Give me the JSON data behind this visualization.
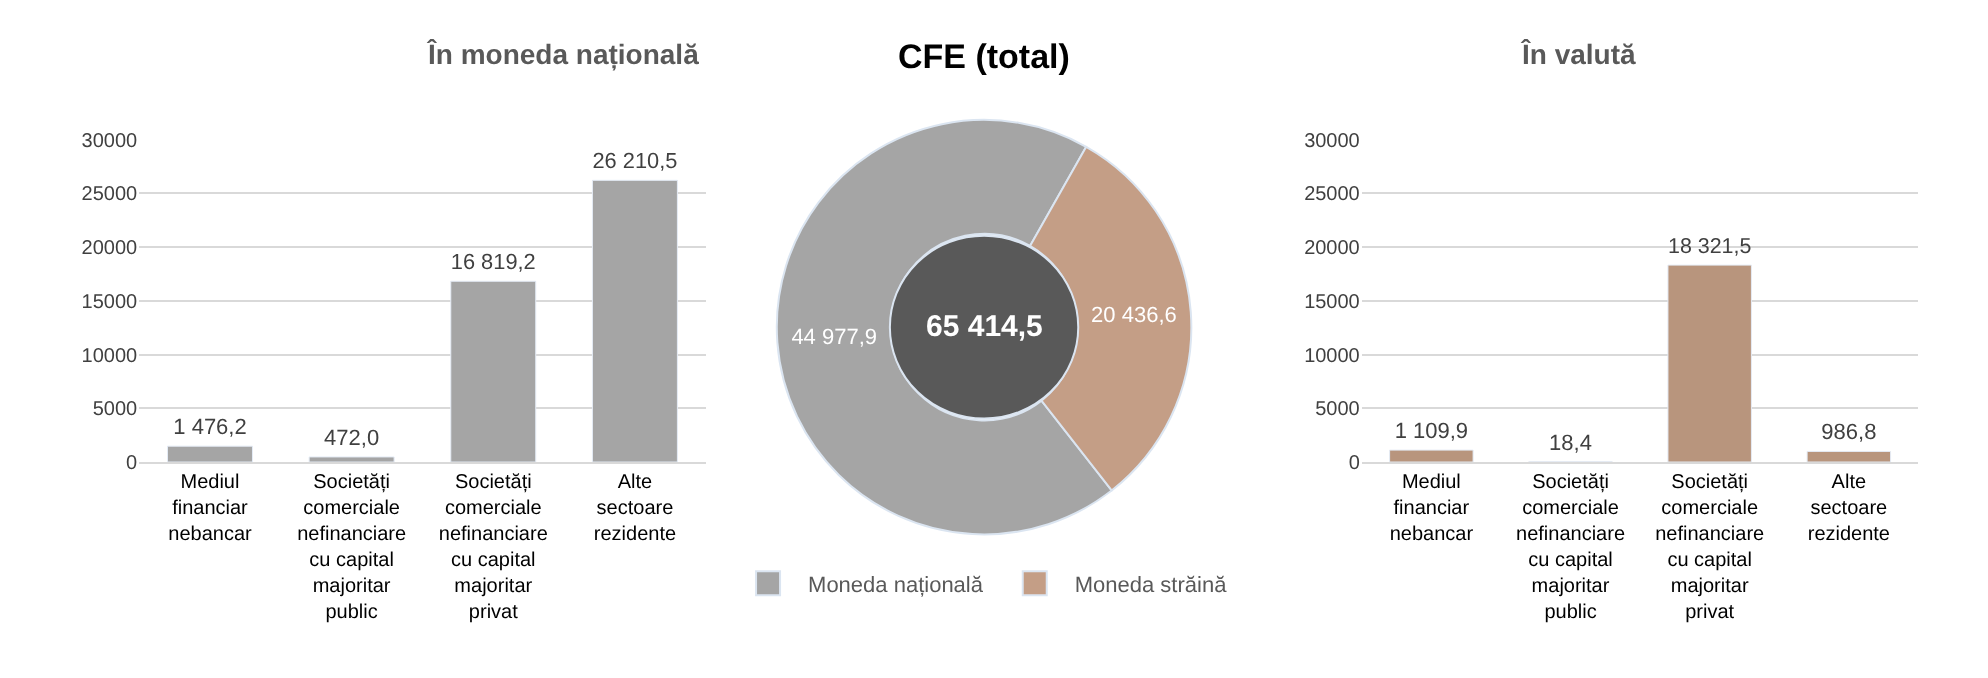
{
  "chart_data": [
    {
      "type": "bar",
      "title": "În moneda națională",
      "categories": [
        "Mediul financiar nebancar",
        "Societăți comerciale nefinanciare cu capital majoritar public",
        "Societăți comerciale nefinanciare cu capital majoritar privat",
        "Alte sectoare rezidente"
      ],
      "values": [
        1476.2,
        472.0,
        16819.2,
        26210.5
      ],
      "value_labels": [
        "1 476,2",
        "472,0",
        "16 819,2",
        "26 210,5"
      ],
      "color": "#a5a5a5",
      "ylim": [
        0,
        30000
      ],
      "yticks": [
        0,
        5000,
        10000,
        15000,
        20000,
        25000,
        30000
      ],
      "grid": "y",
      "legend": false
    },
    {
      "type": "donut",
      "title": "CFE (total)",
      "categories": [
        "Moneda națională",
        "Moneda străină"
      ],
      "values": [
        44977.9,
        20436.6
      ],
      "value_labels": [
        "44 977,9",
        "20 436,6"
      ],
      "colors": [
        "#a5a5a5",
        "#c49e86"
      ],
      "annotations": [
        "65 414,5"
      ],
      "legend": "bottom"
    },
    {
      "type": "bar",
      "title": "În valută",
      "categories": [
        "Mediul financiar nebancar",
        "Societăți comerciale nefinanciare cu capital majoritar public",
        "Societăți comerciale nefinanciare cu capital majoritar privat",
        "Alte sectoare rezidente"
      ],
      "values": [
        1109.9,
        18.4,
        18321.5,
        986.8
      ],
      "value_labels": [
        "1 109,9",
        "18,4",
        "18 321,5",
        "986,8"
      ],
      "color": "#b8957d",
      "ylim": [
        0,
        30000
      ],
      "yticks": [
        0,
        5000,
        10000,
        15000,
        20000,
        25000,
        30000
      ],
      "grid": "y",
      "legend": false
    }
  ]
}
